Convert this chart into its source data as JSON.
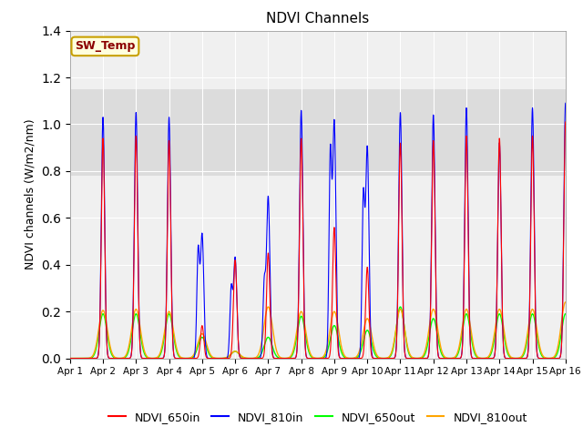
{
  "title": "NDVI Channels",
  "ylabel": "NDVI channels (W/m2/nm)",
  "ylim": [
    0,
    1.4
  ],
  "plot_bg_color": "#f0f0f0",
  "shaded_band": [
    0.78,
    1.15
  ],
  "shaded_band_color": "#dcdcdc",
  "grid_color": "white",
  "annotation_text": "SW_Temp",
  "annotation_color": "#8b0000",
  "annotation_bg": "#ffffdd",
  "annotation_edge": "#c8a000",
  "xtick_labels": [
    "Apr 1",
    "Apr 2",
    "Apr 3",
    "Apr 4",
    "Apr 5",
    "Apr 6",
    "Apr 7",
    "Apr 8",
    "Apr 9",
    "Apr 10",
    "Apr 11",
    "Apr 12",
    "Apr 13",
    "Apr 14",
    "Apr 15",
    "Apr 16"
  ],
  "peaks": [
    {
      "day": 1,
      "r": 0.94,
      "b": 1.03,
      "g": 0.19,
      "o": 0.205,
      "b2": 0.0
    },
    {
      "day": 2,
      "r": 0.95,
      "b": 1.05,
      "g": 0.19,
      "o": 0.21,
      "b2": 0.0
    },
    {
      "day": 3,
      "r": 0.93,
      "b": 1.03,
      "g": 0.19,
      "o": 0.2,
      "b2": 0.0
    },
    {
      "day": 4,
      "r": 0.14,
      "b": 0.53,
      "g": 0.09,
      "o": 0.105,
      "b2": 0.45
    },
    {
      "day": 5,
      "r": 0.42,
      "b": 0.43,
      "g": 0.03,
      "o": 0.03,
      "b2": 0.29
    },
    {
      "day": 6,
      "r": 0.45,
      "b": 0.69,
      "g": 0.09,
      "o": 0.22,
      "b2": 0.31
    },
    {
      "day": 7,
      "r": 0.94,
      "b": 1.06,
      "g": 0.18,
      "o": 0.2,
      "b2": 0.0
    },
    {
      "day": 8,
      "r": 0.56,
      "b": 1.01,
      "g": 0.14,
      "o": 0.2,
      "b2": 0.85
    },
    {
      "day": 9,
      "r": 0.39,
      "b": 0.9,
      "g": 0.12,
      "o": 0.17,
      "b2": 0.67
    },
    {
      "day": 10,
      "r": 0.92,
      "b": 1.05,
      "g": 0.22,
      "o": 0.21,
      "b2": 0.0
    },
    {
      "day": 11,
      "r": 0.93,
      "b": 1.04,
      "g": 0.17,
      "o": 0.21,
      "b2": 0.0
    },
    {
      "day": 12,
      "r": 0.95,
      "b": 1.07,
      "g": 0.19,
      "o": 0.21,
      "b2": 0.0
    },
    {
      "day": 13,
      "r": 0.94,
      "b": 0.92,
      "g": 0.19,
      "o": 0.21,
      "b2": 0.0
    },
    {
      "day": 14,
      "r": 0.95,
      "b": 1.07,
      "g": 0.19,
      "o": 0.21,
      "b2": 0.0
    },
    {
      "day": 15,
      "r": 1.01,
      "b": 1.09,
      "g": 0.19,
      "o": 0.24,
      "b2": 0.0
    }
  ]
}
